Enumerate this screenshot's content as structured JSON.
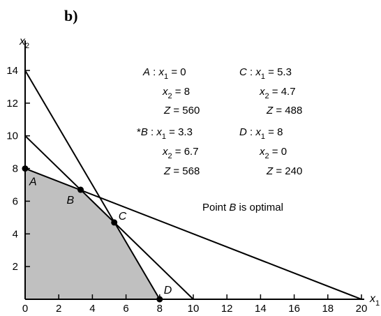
{
  "panel_label": "b)",
  "chart_data": {
    "type": "line",
    "xlabel": "x1",
    "ylabel": "x2",
    "xlim": [
      0,
      20
    ],
    "ylim": [
      0,
      14
    ],
    "x_ticks": [
      "0",
      "2",
      "4",
      "6",
      "8",
      "10",
      "12",
      "14",
      "16",
      "18",
      "20"
    ],
    "y_ticks": [
      "2",
      "4",
      "6",
      "8",
      "10",
      "12",
      "14"
    ],
    "feasible_region": [
      [
        0,
        0
      ],
      [
        0,
        8
      ],
      [
        3.3,
        6.7
      ],
      [
        5.3,
        4.7
      ],
      [
        8,
        0
      ]
    ],
    "constraint_lines": [
      {
        "from": [
          0,
          8
        ],
        "to": [
          20,
          0
        ]
      },
      {
        "from": [
          0,
          10
        ],
        "to": [
          10,
          0
        ]
      },
      {
        "from": [
          0,
          14
        ],
        "to": [
          8,
          0
        ]
      }
    ],
    "points": [
      {
        "label": "A",
        "x": 0,
        "y": 8
      },
      {
        "label": "B",
        "x": 3.3,
        "y": 6.7
      },
      {
        "label": "C",
        "x": 5.3,
        "y": 4.7
      },
      {
        "label": "D",
        "x": 8,
        "y": 0
      }
    ],
    "annotations": [
      {
        "lines": [
          "A : x1 = 0",
          "x2 = 8",
          "Z = 560"
        ]
      },
      {
        "lines": [
          "C : x1 = 5.3",
          "x2 = 4.7",
          "Z = 488"
        ]
      },
      {
        "lines": [
          "*B : x1 = 3.3",
          "x2 = 6.7",
          "Z = 568"
        ]
      },
      {
        "lines": [
          "D : x1 = 8",
          "x2 = 0",
          "Z = 240"
        ]
      }
    ],
    "note": "Point B is optimal",
    "colors": {
      "region": "#c0c0c0",
      "line": "#000000"
    }
  }
}
